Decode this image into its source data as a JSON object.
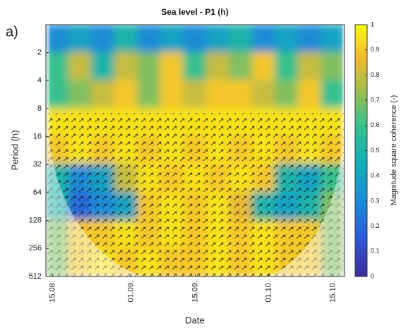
{
  "chart_data": {
    "type": "heatmap",
    "panel_label": "a)",
    "title": "Sea level - P1 (h)",
    "y_label": "Period (h)",
    "x_label": "Date",
    "colorbar_label": "Magnitude square coherence (-)",
    "y_log_base": 2,
    "ylim": [
      1,
      512
    ],
    "yticks": [
      2,
      4,
      8,
      16,
      32,
      64,
      128,
      256,
      512
    ],
    "xlim": [
      -1.5,
      63.5
    ],
    "xticks": [
      {
        "value": 0,
        "label": "15.08."
      },
      {
        "value": 17,
        "label": "01.09."
      },
      {
        "value": 31,
        "label": "15.09."
      },
      {
        "value": 47,
        "label": "01.10."
      },
      {
        "value": 61,
        "label": "15.10."
      }
    ],
    "clim": [
      0,
      1
    ],
    "cticks": [
      0,
      0.1,
      0.2,
      0.3,
      0.4,
      0.5,
      0.6,
      0.7,
      0.8,
      0.9,
      1
    ],
    "x_edges": [
      -1.5,
      3.5,
      8.5,
      13.5,
      18.5,
      23.5,
      28.5,
      33.5,
      38.5,
      43.5,
      48.5,
      53.5,
      58.5,
      63.5
    ],
    "y_edges": [
      1,
      2,
      4,
      8,
      16,
      32,
      64,
      128,
      256,
      512
    ],
    "z": [
      [
        0.3,
        0.4,
        0.3,
        0.5,
        0.3,
        0.4,
        0.3,
        0.4,
        0.5,
        0.3,
        0.4,
        0.3,
        0.4
      ],
      [
        0.6,
        0.8,
        0.5,
        0.8,
        0.7,
        0.9,
        0.6,
        0.8,
        0.7,
        0.9,
        0.6,
        0.8,
        0.7
      ],
      [
        0.6,
        0.7,
        0.8,
        0.9,
        0.7,
        0.9,
        0.8,
        0.9,
        0.9,
        0.8,
        0.7,
        0.9,
        0.6
      ],
      [
        0.95,
        0.95,
        0.95,
        0.95,
        0.95,
        0.95,
        0.95,
        0.95,
        0.95,
        0.95,
        0.95,
        0.95,
        0.95
      ],
      [
        0.9,
        0.95,
        0.9,
        0.95,
        0.9,
        0.95,
        0.9,
        0.95,
        0.9,
        0.95,
        0.9,
        0.95,
        0.9
      ],
      [
        0.5,
        0.3,
        0.4,
        0.8,
        0.95,
        0.9,
        0.95,
        0.9,
        0.95,
        0.9,
        0.5,
        0.4,
        0.6
      ],
      [
        0.5,
        0.2,
        0.3,
        0.4,
        0.9,
        0.95,
        0.9,
        0.95,
        0.85,
        0.5,
        0.4,
        0.5,
        0.7
      ],
      [
        0.7,
        0.9,
        0.9,
        0.95,
        0.9,
        0.95,
        0.9,
        0.95,
        0.9,
        0.95,
        0.9,
        0.9,
        0.7
      ],
      [
        0.7,
        0.9,
        0.95,
        0.9,
        0.95,
        0.9,
        0.9,
        0.95,
        0.9,
        0.95,
        0.9,
        0.9,
        0.7
      ]
    ]
  }
}
